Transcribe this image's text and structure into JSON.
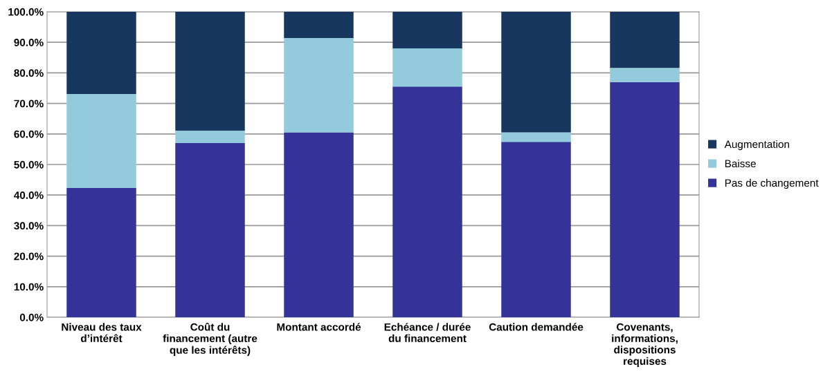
{
  "chart_data": {
    "type": "bar",
    "stacked": true,
    "categories": [
      "Niveau des taux\nd’intérêt",
      "Coût du\nfinancement (autre\nque les intérêts)",
      "Montant accordé",
      "Echéance / durée\ndu financement",
      "Caution demandée",
      "Covenants,\ninformations,\ndispositions\nrequises"
    ],
    "series": [
      {
        "name": "Pas de changement",
        "color": "#343397",
        "values": [
          42.3,
          57.0,
          60.5,
          75.5,
          57.4,
          77.0
        ]
      },
      {
        "name": "Baisse",
        "color": "#93cbdc",
        "values": [
          30.8,
          4.1,
          30.9,
          12.5,
          3.1,
          4.6
        ]
      },
      {
        "name": "Augmentation",
        "color": "#18375e",
        "values": [
          26.9,
          38.9,
          8.6,
          12.0,
          39.5,
          18.4
        ]
      }
    ],
    "ylim": [
      0,
      100
    ],
    "yticks": [
      {
        "value": 0,
        "label": "0.0%"
      },
      {
        "value": 10,
        "label": "10.0%"
      },
      {
        "value": 20,
        "label": "20.0%"
      },
      {
        "value": 30,
        "label": "30.0%"
      },
      {
        "value": 40,
        "label": "40.0%"
      },
      {
        "value": 50,
        "label": "50.0%"
      },
      {
        "value": 60,
        "label": "60.0%"
      },
      {
        "value": 70,
        "label": "70.0%"
      },
      {
        "value": 80,
        "label": "80.0%"
      },
      {
        "value": 90,
        "label": "90.0%"
      },
      {
        "value": 100,
        "label": "100.0%"
      }
    ],
    "grid": "y",
    "legend": "right"
  }
}
